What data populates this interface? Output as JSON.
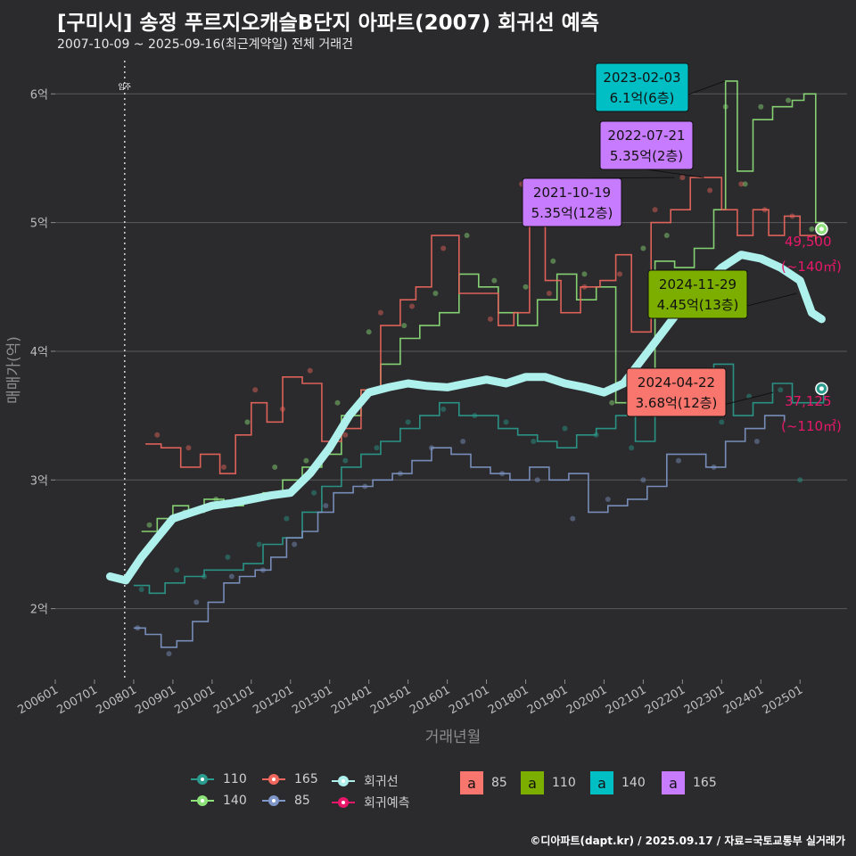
{
  "title": "[구미시] 송정 푸르지오캐슬B단지 아파트(2007) 회귀선 예측",
  "subtitle": "2007-10-09 ~ 2025-09-16(최근계약일) 전체 거래건",
  "caption": "©디아파트(dapt.kr) / 2025.09.17 / 자료=국토교통부 실거래가",
  "colors": {
    "background": "#2b2b2d",
    "grid": "#5a5a5c",
    "s110": "#2a9d8f",
    "s140": "#8ee27a",
    "s165": "#f0675e",
    "s85": "#7f97c8",
    "regression": "#aef0ec",
    "prediction": "#e8176a",
    "ann85": "#f8766d",
    "ann110": "#7cae00",
    "ann140": "#00bfc4",
    "ann165": "#c77cff"
  },
  "chart_data": {
    "type": "line",
    "title": "[구미시] 송정 푸르지오캐슬B단지 아파트(2007) 회귀선 예측",
    "xlabel": "거래년월",
    "ylabel": "매매가(억)",
    "xlim": [
      2006.0,
      2026.2
    ],
    "ylim": [
      1.45,
      6.3
    ],
    "yticks": [
      2,
      3,
      4,
      5,
      6
    ],
    "ytick_labels": [
      "2억",
      "3억",
      "4억",
      "5억",
      "6억"
    ],
    "xticks": [
      2006,
      2007,
      2008,
      2009,
      2010,
      2011,
      2012,
      2013,
      2014,
      2015,
      2016,
      2017,
      2018,
      2019,
      2020,
      2021,
      2022,
      2023,
      2024,
      2025
    ],
    "xtick_labels": [
      "200601",
      "200701",
      "200801",
      "200901",
      "201001",
      "201101",
      "201201",
      "201301",
      "201401",
      "201501",
      "201601",
      "201701",
      "201801",
      "201901",
      "202001",
      "202101",
      "202201",
      "202301",
      "202401",
      "202501"
    ],
    "vline": {
      "x": 2007.77,
      "label": "입주"
    },
    "series": [
      {
        "name": "110",
        "x": [
          2008.0,
          2008.4,
          2008.8,
          2009.3,
          2009.8,
          2010.3,
          2010.8,
          2011.3,
          2011.8,
          2012.3,
          2012.8,
          2013.3,
          2013.8,
          2014.3,
          2014.8,
          2015.3,
          2015.8,
          2016.3,
          2017.3,
          2017.8,
          2018.3,
          2018.8,
          2019.3,
          2019.8,
          2020.3,
          2020.8,
          2021.3,
          2021.8,
          2022.3,
          2022.8,
          2023.3,
          2023.8,
          2024.3,
          2024.8,
          2025.3,
          2025.6
        ],
        "values": [
          2.18,
          2.12,
          2.2,
          2.25,
          2.3,
          2.3,
          2.35,
          2.5,
          2.55,
          2.75,
          2.95,
          3.1,
          3.2,
          3.3,
          3.4,
          3.5,
          3.6,
          3.5,
          3.4,
          3.35,
          3.3,
          3.25,
          3.35,
          3.4,
          3.5,
          3.3,
          3.5,
          3.7,
          3.85,
          3.9,
          3.5,
          3.6,
          3.75,
          3.6,
          3.6,
          3.7
        ]
      },
      {
        "name": "140",
        "x": [
          2008.2,
          2008.6,
          2009.0,
          2009.4,
          2009.8,
          2010.3,
          2010.8,
          2011.3,
          2011.8,
          2012.3,
          2012.8,
          2013.3,
          2013.8,
          2014.3,
          2014.8,
          2015.3,
          2015.8,
          2016.3,
          2016.8,
          2017.3,
          2017.8,
          2018.3,
          2018.8,
          2019.3,
          2019.8,
          2020.3,
          2020.8,
          2021.3,
          2021.8,
          2022.3,
          2022.8,
          2023.1,
          2023.4,
          2023.8,
          2024.3,
          2024.8,
          2025.1,
          2025.4,
          2025.6
        ],
        "values": [
          2.6,
          2.7,
          2.8,
          2.75,
          2.85,
          2.8,
          2.85,
          2.9,
          3.0,
          3.1,
          3.2,
          3.5,
          3.7,
          3.9,
          4.1,
          4.2,
          4.3,
          4.6,
          4.5,
          4.3,
          4.2,
          4.4,
          4.6,
          4.4,
          4.5,
          3.6,
          3.7,
          4.7,
          4.65,
          4.8,
          5.1,
          6.1,
          5.4,
          5.8,
          5.9,
          5.95,
          6.0,
          5.0,
          4.95
        ]
      },
      {
        "name": "165",
        "x": [
          2008.3,
          2008.7,
          2009.2,
          2009.7,
          2010.2,
          2010.6,
          2011.0,
          2011.4,
          2011.8,
          2012.3,
          2012.8,
          2013.3,
          2013.8,
          2014.3,
          2014.8,
          2015.2,
          2015.6,
          2016.3,
          2017.3,
          2017.7,
          2018.1,
          2018.5,
          2018.9,
          2019.4,
          2019.9,
          2020.3,
          2020.7,
          2021.2,
          2021.7,
          2022.2,
          2022.6,
          2023.0,
          2023.4,
          2023.8,
          2024.2,
          2024.6,
          2025.0,
          2025.4
        ],
        "values": [
          3.28,
          3.25,
          3.1,
          3.2,
          3.05,
          3.35,
          3.6,
          3.45,
          3.8,
          3.75,
          3.3,
          3.4,
          3.7,
          4.2,
          4.4,
          4.5,
          4.9,
          4.45,
          4.2,
          4.3,
          5.3,
          4.55,
          4.3,
          4.5,
          4.55,
          4.75,
          4.15,
          5.0,
          5.1,
          5.35,
          5.35,
          5.1,
          4.9,
          5.1,
          4.9,
          5.05,
          4.9,
          4.85
        ]
      },
      {
        "name": "85",
        "x": [
          2008.0,
          2008.3,
          2008.7,
          2009.1,
          2009.5,
          2009.9,
          2010.3,
          2010.7,
          2011.1,
          2011.5,
          2011.9,
          2012.3,
          2012.7,
          2013.1,
          2013.6,
          2014.1,
          2014.6,
          2015.1,
          2015.6,
          2016.1,
          2016.6,
          2017.1,
          2017.6,
          2018.1,
          2018.6,
          2019.1,
          2019.6,
          2020.1,
          2020.6,
          2021.1,
          2021.6,
          2022.1,
          2022.6,
          2023.1,
          2023.6,
          2024.1,
          2024.6
        ],
        "values": [
          1.85,
          1.8,
          1.7,
          1.75,
          1.9,
          2.05,
          2.2,
          2.25,
          2.3,
          2.4,
          2.55,
          2.6,
          2.75,
          2.9,
          2.95,
          3.0,
          3.05,
          3.15,
          3.25,
          3.2,
          3.1,
          3.05,
          3.0,
          3.1,
          3.0,
          3.05,
          2.75,
          2.8,
          2.85,
          2.95,
          3.2,
          3.2,
          3.1,
          3.3,
          3.4,
          3.5,
          3.45
        ]
      },
      {
        "name": "회귀선",
        "x": [
          2007.4,
          2007.8,
          2008.2,
          2008.6,
          2009.0,
          2009.5,
          2010.0,
          2010.5,
          2011.0,
          2011.5,
          2012.0,
          2012.5,
          2013.0,
          2013.5,
          2014.0,
          2014.5,
          2015.0,
          2015.5,
          2016.0,
          2016.5,
          2017.0,
          2017.5,
          2018.0,
          2018.5,
          2019.0,
          2019.5,
          2020.0,
          2020.5,
          2021.0,
          2021.5,
          2022.0,
          2022.5,
          2023.0,
          2023.5,
          2024.0,
          2024.5,
          2025.0,
          2025.3,
          2025.55
        ],
        "values": [
          2.25,
          2.22,
          2.4,
          2.55,
          2.7,
          2.75,
          2.8,
          2.82,
          2.85,
          2.88,
          2.9,
          3.05,
          3.25,
          3.5,
          3.68,
          3.72,
          3.75,
          3.73,
          3.72,
          3.75,
          3.78,
          3.75,
          3.8,
          3.8,
          3.75,
          3.72,
          3.68,
          3.75,
          3.95,
          4.15,
          4.35,
          4.5,
          4.65,
          4.75,
          4.72,
          4.65,
          4.55,
          4.3,
          4.25
        ]
      }
    ],
    "scatter": [
      {
        "series": "110",
        "x": [
          2008.2,
          2009.1,
          2009.8,
          2010.4,
          2011.2,
          2011.9,
          2012.6,
          2013.4,
          2014.2,
          2015.0,
          2015.9,
          2016.7,
          2017.5,
          2018.2,
          2019.0,
          2019.8,
          2020.7,
          2021.4,
          2022.2,
          2023.0,
          2023.7,
          2024.5,
          2025.0
        ],
        "values": [
          2.15,
          2.3,
          2.25,
          2.4,
          2.5,
          2.7,
          2.9,
          3.15,
          3.25,
          3.45,
          3.55,
          3.5,
          3.45,
          3.3,
          3.4,
          3.35,
          3.25,
          3.55,
          3.8,
          3.45,
          3.65,
          3.7,
          3.0
        ]
      },
      {
        "series": "140",
        "x": [
          2008.4,
          2009.3,
          2010.1,
          2010.9,
          2011.6,
          2012.4,
          2013.2,
          2014.0,
          2014.9,
          2015.7,
          2016.5,
          2017.2,
          2018.0,
          2018.7,
          2019.5,
          2020.2,
          2021.0,
          2021.6,
          2022.4,
          2023.1,
          2023.6,
          2024.0,
          2024.7,
          2025.3
        ],
        "values": [
          2.65,
          2.75,
          2.85,
          3.45,
          3.1,
          3.15,
          3.6,
          4.15,
          4.2,
          4.45,
          4.9,
          4.55,
          4.5,
          4.7,
          4.6,
          3.6,
          4.8,
          4.9,
          4.5,
          5.9,
          5.3,
          5.9,
          5.95,
          4.95
        ]
      },
      {
        "series": "165",
        "x": [
          2008.6,
          2009.4,
          2010.3,
          2011.1,
          2011.8,
          2012.5,
          2013.4,
          2014.3,
          2015.1,
          2015.9,
          2017.1,
          2017.9,
          2018.6,
          2019.5,
          2020.4,
          2021.3,
          2022.0,
          2022.7,
          2023.5,
          2024.1,
          2024.8
        ],
        "values": [
          3.35,
          3.25,
          3.1,
          3.7,
          3.55,
          3.85,
          3.35,
          4.3,
          4.35,
          4.8,
          4.25,
          5.3,
          4.45,
          4.5,
          4.6,
          5.1,
          5.35,
          5.25,
          5.3,
          5.1,
          5.05
        ]
      },
      {
        "series": "85",
        "x": [
          2008.1,
          2008.9,
          2009.6,
          2010.5,
          2011.3,
          2012.1,
          2012.9,
          2013.9,
          2014.8,
          2015.6,
          2016.4,
          2017.4,
          2018.3,
          2019.2,
          2020.1,
          2021.0,
          2021.9,
          2022.8,
          2023.9
        ],
        "values": [
          1.85,
          1.65,
          2.05,
          2.25,
          2.3,
          2.5,
          2.8,
          2.95,
          3.05,
          3.25,
          3.3,
          3.05,
          3.0,
          2.7,
          2.85,
          3.0,
          3.15,
          3.1,
          3.3
        ]
      }
    ],
    "annotations": [
      {
        "date": "2023-02-03",
        "price": "6.1억(6층)",
        "type": "140",
        "x": 2023.09,
        "y": 6.1
      },
      {
        "date": "2022-07-21",
        "price": "5.35억(2층)",
        "type": "165",
        "x": 2022.55,
        "y": 5.35
      },
      {
        "date": "2021-10-19",
        "price": "5.35억(12층)",
        "type": "165",
        "x": 2021.8,
        "y": 5.35
      },
      {
        "date": "2024-11-29",
        "price": "4.45억(13층)",
        "type": "110",
        "x": 2024.91,
        "y": 4.45
      },
      {
        "date": "2024-04-22",
        "price": "3.68억(12층)",
        "type": "85",
        "x": 2024.31,
        "y": 3.68
      }
    ],
    "predictions": [
      {
        "value": "49,500",
        "area": "(~140㎡)",
        "x": 2025.55,
        "y": 4.95
      },
      {
        "value": "37,125",
        "area": "(~110㎡)",
        "x": 2025.55,
        "y": 3.71
      }
    ],
    "legend": [
      {
        "label": "110",
        "color_key": "s110"
      },
      {
        "label": "165",
        "color_key": "s165"
      },
      {
        "label": "회귀선",
        "color_key": "regression"
      },
      {
        "label": "140",
        "color_key": "s140"
      },
      {
        "label": "85",
        "color_key": "s85"
      },
      {
        "label": "회귀예측",
        "color_key": "prediction"
      }
    ],
    "legend_boxes": [
      {
        "glyph": "a",
        "label": "85",
        "color_key": "ann85"
      },
      {
        "glyph": "a",
        "label": "110",
        "color_key": "ann110"
      },
      {
        "glyph": "a",
        "label": "140",
        "color_key": "ann140"
      },
      {
        "glyph": "a",
        "label": "165",
        "color_key": "ann165"
      }
    ]
  }
}
